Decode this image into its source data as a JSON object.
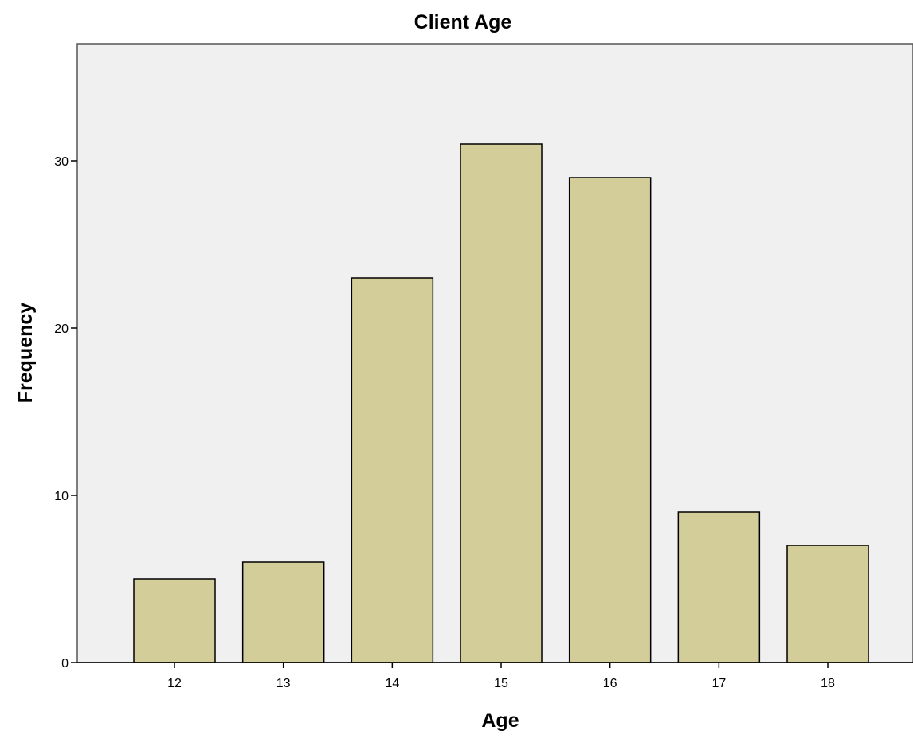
{
  "chart_data": {
    "type": "bar",
    "title": "Client Age",
    "xlabel": "Age",
    "ylabel": "Frequency",
    "categories": [
      "12",
      "13",
      "14",
      "15",
      "16",
      "17",
      "18"
    ],
    "values": [
      5,
      6,
      23,
      31,
      29,
      9,
      7
    ],
    "ylim": [
      0,
      37
    ],
    "yticks": [
      0,
      10,
      20,
      30
    ],
    "grid": false,
    "bar_color": "#d3cd99",
    "bar_stroke": "#000000",
    "plot_background": "#f0f0f0"
  }
}
